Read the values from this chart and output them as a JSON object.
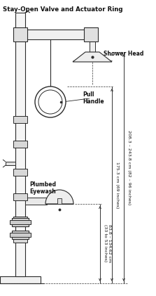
{
  "title": "Stay-Open Valve and Actuator Ring",
  "shower_head_label": "Shower Head",
  "pull_handle_label": "Pull\nHandle",
  "plumbed_eyewash_label": "Plumbed\nEyewash",
  "dim1_label": "83.8 – 134.62 cm\n(33 to 53 inches)",
  "dim2_label": "175.3 cm (69 inches)",
  "dim3_label": "208.3 – 243.8 cm (82 – 96 inches)",
  "bg_color": "#ffffff",
  "line_color": "#2a2a2a",
  "text_color": "#111111",
  "fig_width": 2.23,
  "fig_height": 4.21,
  "dpi": 100
}
